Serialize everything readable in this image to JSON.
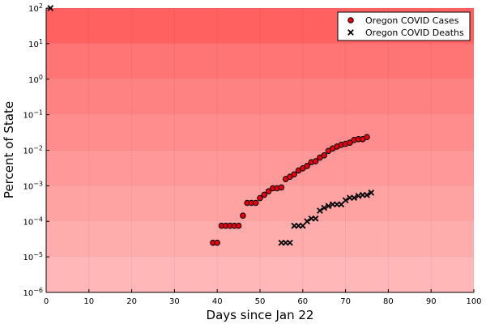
{
  "chart_data": {
    "type": "scatter",
    "title": "",
    "xlabel": "Days since Jan 22",
    "ylabel": "Percent of State",
    "xlim": [
      0,
      100
    ],
    "ylim": [
      1e-06,
      100
    ],
    "yscale": "log",
    "x_ticks": [
      "0",
      "10",
      "20",
      "30",
      "40",
      "50",
      "60",
      "70",
      "80",
      "90",
      "100"
    ],
    "y_ticks": [
      {
        "base": "10",
        "exp": "2"
      },
      {
        "base": "10",
        "exp": "1"
      },
      {
        "base": "10",
        "exp": "0"
      },
      {
        "base": "10",
        "exp": "−1"
      },
      {
        "base": "10",
        "exp": "−2"
      },
      {
        "base": "10",
        "exp": "−3"
      },
      {
        "base": "10",
        "exp": "−4"
      },
      {
        "base": "10",
        "exp": "−5"
      },
      {
        "base": "10",
        "exp": "−6"
      }
    ],
    "grid": true,
    "legend_position": "top-right",
    "background_bands": [
      {
        "from": 10,
        "to": 100,
        "color": "#ff6161"
      },
      {
        "from": 1,
        "to": 10,
        "color": "#ff7474"
      },
      {
        "from": 0.1,
        "to": 1,
        "color": "#ff8282"
      },
      {
        "from": 0.01,
        "to": 0.1,
        "color": "#ff8d8d"
      },
      {
        "from": 0.001,
        "to": 0.01,
        "color": "#ff9898"
      },
      {
        "from": 0.0001,
        "to": 0.001,
        "color": "#ffa2a2"
      },
      {
        "from": 1e-05,
        "to": 0.0001,
        "color": "#ffacac"
      },
      {
        "from": 1e-06,
        "to": 1e-05,
        "color": "#ffb7b7"
      }
    ],
    "series": [
      {
        "name": "Oregon COVID Cases",
        "marker": "circle",
        "color": "#e3000e",
        "points": [
          [
            39,
            2.5e-05
          ],
          [
            40,
            2.5e-05
          ],
          [
            41,
            7.5e-05
          ],
          [
            42,
            7.5e-05
          ],
          [
            43,
            7.5e-05
          ],
          [
            44,
            7.5e-05
          ],
          [
            45,
            7.5e-05
          ],
          [
            46,
            0.000145
          ],
          [
            47,
            0.00033
          ],
          [
            48,
            0.00033
          ],
          [
            49,
            0.00033
          ],
          [
            50,
            0.00045
          ],
          [
            51,
            0.00056
          ],
          [
            52,
            0.0007
          ],
          [
            53,
            0.00085
          ],
          [
            54,
            0.00085
          ],
          [
            55,
            0.0009
          ],
          [
            56,
            0.00155
          ],
          [
            57,
            0.0018
          ],
          [
            58,
            0.0021
          ],
          [
            59,
            0.0027
          ],
          [
            60,
            0.0031
          ],
          [
            61,
            0.0036
          ],
          [
            62,
            0.0046
          ],
          [
            63,
            0.0049
          ],
          [
            64,
            0.0062
          ],
          [
            65,
            0.0072
          ],
          [
            66,
            0.0096
          ],
          [
            67,
            0.0112
          ],
          [
            68,
            0.0127
          ],
          [
            69,
            0.0142
          ],
          [
            70,
            0.0152
          ],
          [
            71,
            0.0163
          ],
          [
            72,
            0.0195
          ],
          [
            73,
            0.0205
          ],
          [
            74,
            0.0205
          ],
          [
            75,
            0.0235
          ]
        ]
      },
      {
        "name": "Oregon COVID Deaths",
        "marker": "x",
        "color": "#000000",
        "points": [
          [
            1,
            100
          ],
          [
            55,
            2.5e-05
          ],
          [
            56,
            2.5e-05
          ],
          [
            57,
            2.5e-05
          ],
          [
            58,
            7.5e-05
          ],
          [
            59,
            7.5e-05
          ],
          [
            60,
            7.5e-05
          ],
          [
            61,
            0.0001
          ],
          [
            62,
            0.00012
          ],
          [
            63,
            0.00012
          ],
          [
            64,
            0.0002
          ],
          [
            65,
            0.00024
          ],
          [
            66,
            0.00027
          ],
          [
            67,
            0.0003
          ],
          [
            68,
            0.0003
          ],
          [
            69,
            0.0003
          ],
          [
            70,
            0.00039
          ],
          [
            71,
            0.00046
          ],
          [
            72,
            0.00046
          ],
          [
            73,
            0.00052
          ],
          [
            74,
            0.00055
          ],
          [
            75,
            0.00055
          ],
          [
            76,
            0.00064
          ]
        ]
      }
    ]
  }
}
